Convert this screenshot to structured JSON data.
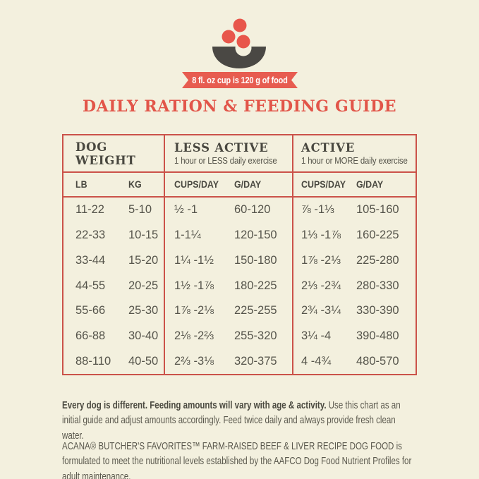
{
  "icon": {
    "name": "bowl-with-kibble",
    "caption": "8 fl. oz cup is 120 g of food"
  },
  "title": "DAILY RATION & FEEDING GUIDE",
  "table": {
    "sections": [
      {
        "title": "DOG WEIGHT",
        "subtitle": ""
      },
      {
        "title": "LESS ACTIVE",
        "subtitle": "1 hour or LESS daily exercise"
      },
      {
        "title": "ACTIVE",
        "subtitle": "1 hour or MORE daily exercise"
      }
    ],
    "columns": [
      "LB",
      "KG",
      "CUPS/DAY",
      "G/DAY",
      "CUPS/DAY",
      "G/DAY"
    ],
    "rows": [
      [
        "11-22",
        "5-10",
        "½ -1",
        "60-120",
        "⅞ -1⅓",
        "105-160"
      ],
      [
        "22-33",
        "10-15",
        "1-1¼",
        "120-150",
        "1⅓ -1⅞",
        "160-225"
      ],
      [
        "33-44",
        "15-20",
        "1¼ -1½",
        "150-180",
        "1⅞ -2⅓",
        "225-280"
      ],
      [
        "44-55",
        "20-25",
        "1½ -1⅞",
        "180-225",
        "2⅓ -2¾",
        "280-330"
      ],
      [
        "55-66",
        "25-30",
        "1⅞ -2⅛",
        "225-255",
        "2¾ -3¼",
        "330-390"
      ],
      [
        "66-88",
        "30-40",
        "2⅛ -2⅔",
        "255-320",
        "3¼ -4",
        "390-480"
      ],
      [
        "88-110",
        "40-50",
        "2⅔ -3⅛",
        "320-375",
        "4 -4¾",
        "480-570"
      ]
    ]
  },
  "footer": {
    "note_bold": "Every dog is different. Feeding amounts will vary with age & activity.",
    "note_rest": " Use this chart as an initial guide and adjust amounts accordingly. Feed twice daily and always provide fresh clean water.",
    "aafco": "ACANA® BUTCHER'S FAVORITES™ FARM-RAISED BEEF & LIVER RECIPE DOG FOOD is formulated to meet the nutritional levels established by the AAFCO Dog Food Nutrient Profiles for adult maintenance."
  },
  "colors": {
    "background": "#f3f0de",
    "accent_red": "#e25549",
    "border_red": "#cb5249",
    "ribbon_red": "#e75c50",
    "bowl_gray": "#4a4844",
    "heading_dark": "#494840",
    "body_text": "#55544b",
    "ribbon_text": "#ffffff"
  }
}
